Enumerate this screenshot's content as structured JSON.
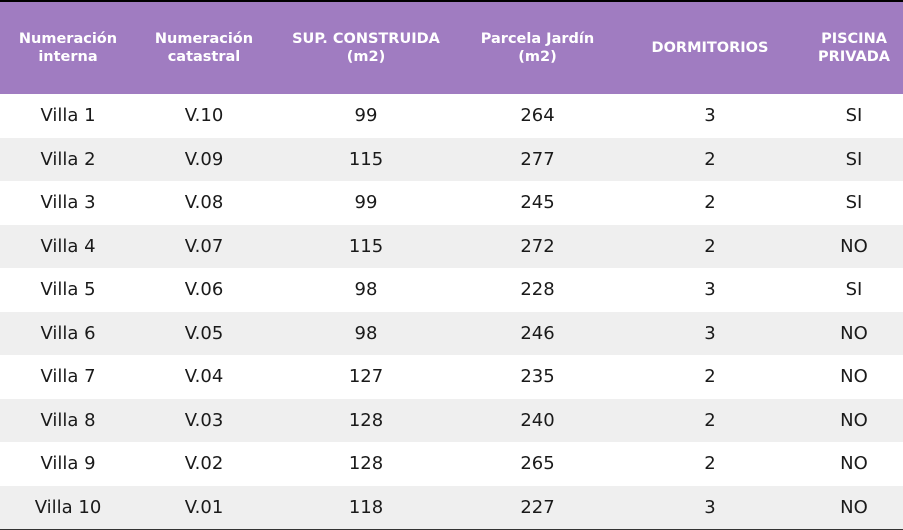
{
  "headers": {
    "internal_number": "Numeración\ninterna",
    "cadastral_number": "Numeración\ncatastral",
    "built_area": "SUP. CONSTRUIDA\n(m2)",
    "garden_plot": "Parcela Jardín\n(m2)",
    "bedrooms": "DORMITORIOS",
    "private_pool": "PISCINA\nPRIVADA"
  },
  "rows": [
    {
      "internal": "Villa 1",
      "cadastral": "V.10",
      "built": "99",
      "garden": "264",
      "bedrooms": "3",
      "pool": "SI"
    },
    {
      "internal": "Villa 2",
      "cadastral": "V.09",
      "built": "115",
      "garden": "277",
      "bedrooms": "2",
      "pool": "SI"
    },
    {
      "internal": "Villa 3",
      "cadastral": "V.08",
      "built": "99",
      "garden": "245",
      "bedrooms": "2",
      "pool": "SI"
    },
    {
      "internal": "Villa 4",
      "cadastral": "V.07",
      "built": "115",
      "garden": "272",
      "bedrooms": "2",
      "pool": "NO"
    },
    {
      "internal": "Villa 5",
      "cadastral": "V.06",
      "built": "98",
      "garden": "228",
      "bedrooms": "3",
      "pool": "SI"
    },
    {
      "internal": "Villa 6",
      "cadastral": "V.05",
      "built": "98",
      "garden": "246",
      "bedrooms": "3",
      "pool": "NO"
    },
    {
      "internal": "Villa 7",
      "cadastral": "V.04",
      "built": "127",
      "garden": "235",
      "bedrooms": "2",
      "pool": "NO"
    },
    {
      "internal": "Villa 8",
      "cadastral": "V.03",
      "built": "128",
      "garden": "240",
      "bedrooms": "2",
      "pool": "NO"
    },
    {
      "internal": "Villa 9",
      "cadastral": "V.02",
      "built": "128",
      "garden": "265",
      "bedrooms": "2",
      "pool": "NO"
    },
    {
      "internal": "Villa 10",
      "cadastral": "V.01",
      "built": "118",
      "garden": "227",
      "bedrooms": "3",
      "pool": "NO"
    }
  ],
  "colors": {
    "header_bg": "#a07cc1",
    "header_text": "#ffffff",
    "row_alt_bg": "#efefef",
    "cell_text": "#1a1a1a"
  }
}
